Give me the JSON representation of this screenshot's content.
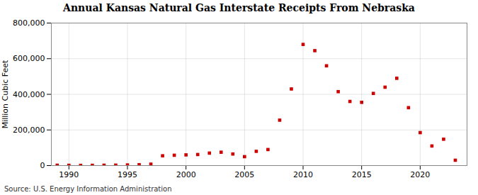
{
  "chart_data": {
    "type": "scatter",
    "title": "Annual Kansas Natural Gas Interstate Receipts From Nebraska",
    "ylabel": "Million Cubic Feet",
    "source": "Source: U.S. Energy Information Administration",
    "x": [
      1989,
      1990,
      1991,
      1992,
      1993,
      1994,
      1995,
      1996,
      1997,
      1998,
      1999,
      2000,
      2001,
      2002,
      2003,
      2004,
      2005,
      2006,
      2007,
      2008,
      2009,
      2010,
      2011,
      2012,
      2013,
      2014,
      2015,
      2016,
      2017,
      2018,
      2019,
      2020,
      2021,
      2022,
      2023
    ],
    "values": [
      2000,
      1500,
      1200,
      1500,
      2000,
      2500,
      3500,
      5000,
      8000,
      55000,
      58000,
      60000,
      62000,
      70000,
      75000,
      65000,
      50000,
      80000,
      90000,
      255000,
      430000,
      680000,
      645000,
      560000,
      415000,
      360000,
      355000,
      405000,
      440000,
      490000,
      325000,
      185000,
      110000,
      148000,
      30000
    ],
    "color": "#cc0000",
    "marker": "square",
    "xlim": [
      1988.5,
      2024
    ],
    "ylim": [
      0,
      800000
    ],
    "xticks": [
      1990,
      1995,
      2000,
      2005,
      2010,
      2015,
      2020
    ],
    "yticks": [
      0,
      {
        "value": 200000,
        "label": "200,000"
      },
      {
        "value": 400000,
        "label": "400,000"
      },
      {
        "value": 600000,
        "label": "600,000"
      },
      {
        "value": 800000,
        "label": "800,000"
      }
    ],
    "grid": true
  }
}
